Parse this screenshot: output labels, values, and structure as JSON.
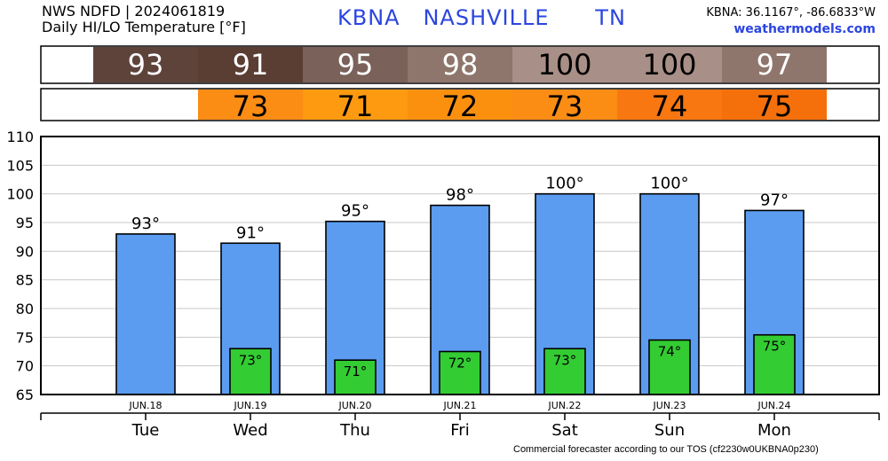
{
  "header": {
    "line1": "NWS NDFD | 2024061819",
    "line2": "Daily HI/LO Temperature [°F]",
    "station": "KBNA   NASHVILLE      TN",
    "coords": "KBNA: 36.1167°, -86.6833°W",
    "site": "weathermodels.com"
  },
  "footer": "Commercial forecaster according to our TOS (cf2230w0UKBNA0p230)",
  "chart_data": {
    "type": "bar",
    "title": "Daily HI/LO Temperature [°F]",
    "ylim": [
      65,
      110
    ],
    "yticks": [
      65,
      70,
      75,
      80,
      85,
      90,
      95,
      100,
      105,
      110
    ],
    "dates": [
      "JUN.18",
      "JUN.19",
      "JUN.20",
      "JUN.21",
      "JUN.22",
      "JUN.23",
      "JUN.24"
    ],
    "days": [
      "Tue",
      "Wed",
      "Thu",
      "Fri",
      "Sat",
      "Sun",
      "Mon"
    ],
    "series": [
      {
        "name": "HI",
        "values": [
          93,
          91.4,
          95.2,
          98,
          100,
          100,
          97.1
        ],
        "labels": [
          "93°",
          "91°",
          "95°",
          "98°",
          "100°",
          "100°",
          "97°"
        ],
        "color": "#5b9cf0"
      },
      {
        "name": "LO",
        "values": [
          null,
          73,
          71,
          72.5,
          73,
          74.5,
          75.4
        ],
        "labels": [
          "",
          "73°",
          "71°",
          "72°",
          "73°",
          "74°",
          "75°"
        ],
        "color": "#33cc33"
      }
    ],
    "hi_strip": {
      "values": [
        "93",
        "91",
        "95",
        "98",
        "100",
        "100",
        "97"
      ],
      "colors": [
        "#5e433b",
        "#5a3d33",
        "#7a6159",
        "#8f766c",
        "#a88f87",
        "#a88f87",
        "#8f766c"
      ],
      "text_colors": [
        "#ffffff",
        "#ffffff",
        "#ffffff",
        "#ffffff",
        "#000000",
        "#000000",
        "#ffffff"
      ]
    },
    "lo_strip": {
      "values": [
        "",
        "73",
        "71",
        "72",
        "73",
        "74",
        "75"
      ],
      "colors": [
        "#ffffff",
        "#fb8c14",
        "#fd9a10",
        "#fb900f",
        "#fb8c14",
        "#f87710",
        "#f5700a"
      ]
    },
    "grid": true
  }
}
